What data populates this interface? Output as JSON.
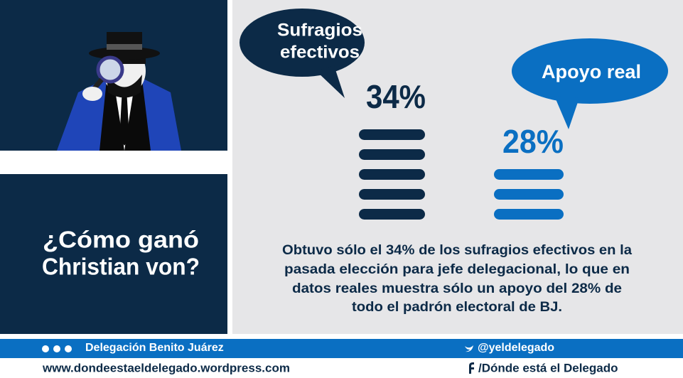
{
  "question": [
    "¿Cómo ganó",
    "Christian von?"
  ],
  "bubbles": [
    {
      "lines": [
        "Sufragios",
        "efectivos"
      ],
      "figure": "34%"
    },
    {
      "lines": [
        "Apoyo real"
      ],
      "figure": "28%"
    }
  ],
  "description": [
    "Obtuvo sólo el 34% de los sufragios efectivos en la",
    "pasada elección para jefe delegacional, lo que en",
    "datos reales muestra sólo un apoyo del 28% de",
    "todo el padrón electoral de BJ."
  ],
  "footer": {
    "office": "Delegación Benito Juárez",
    "twitter": "@yeldelegado",
    "website": "www.dondeestaeldelegado.wordpress.com",
    "facebook": "/Dónde está el Delegado"
  }
}
